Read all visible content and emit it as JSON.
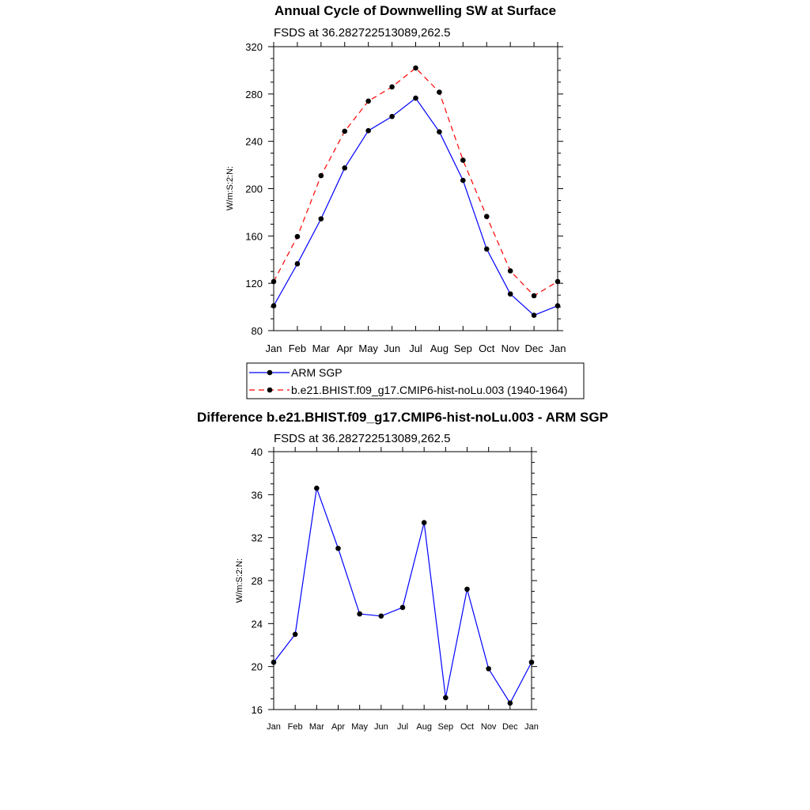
{
  "charts": [
    {
      "chart_data": {
        "type": "line",
        "title": "Annual Cycle of Downwelling SW at Surface",
        "subtitle": "FSDS at 36.282722513089,262.5",
        "ylabel": "W/m:S:2:N:",
        "xlabel": "",
        "categories": [
          "Jan",
          "Feb",
          "Mar",
          "Apr",
          "May",
          "Jun",
          "Jul",
          "Aug",
          "Sep",
          "Oct",
          "Nov",
          "Dec",
          "Jan"
        ],
        "ylim": [
          80,
          320
        ],
        "yticks": [
          80,
          120,
          160,
          200,
          240,
          280,
          320
        ],
        "series": [
          {
            "name": "ARM SGP",
            "color": "#0000ff",
            "dash": "solid",
            "values": [
              101,
              136.5,
              174.5,
              217.5,
              249,
              261,
              276.5,
              248,
              207,
              149,
              111,
              93,
              101
            ]
          },
          {
            "name": "b.e21.BHIST.f09_g17.CMIP6-hist-noLu.003 (1940-1964)",
            "color": "#ff0000",
            "dash": "dashed",
            "values": [
              121.5,
              159.5,
              211,
              248.5,
              274,
              286,
              302,
              281.5,
              224,
              176.5,
              130.5,
              109.5,
              121.5
            ]
          }
        ],
        "legend": "below"
      }
    },
    {
      "chart_data": {
        "type": "line",
        "title": "Difference b.e21.BHIST.f09_g17.CMIP6-hist-noLu.003 - ARM SGP",
        "subtitle": "FSDS at 36.282722513089,262.5",
        "ylabel": "W/m:S:2:N:",
        "xlabel": "",
        "categories": [
          "Jan",
          "Feb",
          "Mar",
          "Apr",
          "May",
          "Jun",
          "Jul",
          "Aug",
          "Sep",
          "Oct",
          "Nov",
          "Dec",
          "Jan"
        ],
        "ylim": [
          16,
          40
        ],
        "yticks": [
          16,
          20,
          24,
          28,
          32,
          36,
          40
        ],
        "series": [
          {
            "name": "",
            "color": "#0000ff",
            "dash": "solid",
            "values": [
              20.4,
              23.0,
              36.6,
              31.0,
              24.9,
              24.7,
              25.5,
              33.4,
              17.1,
              27.2,
              19.8,
              16.6,
              20.4
            ]
          }
        ]
      }
    }
  ]
}
